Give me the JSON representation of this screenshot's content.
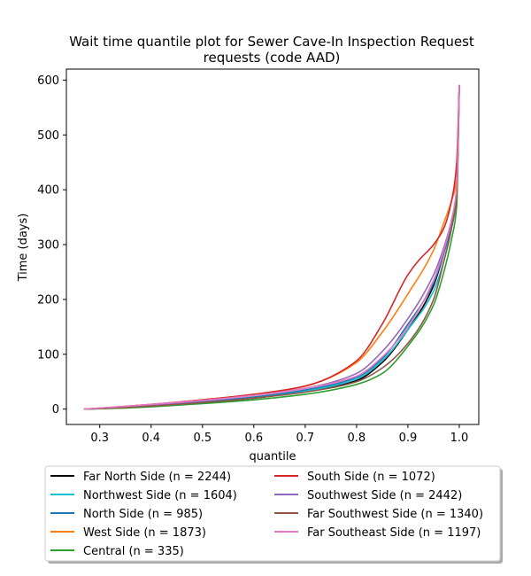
{
  "chart_data": {
    "type": "line",
    "title": "Wait time quantile plot for Sewer Cave-In Inspection Request",
    "subtitle": "requests (code AAD)",
    "xlabel": "quantile",
    "ylabel": "Time (days)",
    "xlim": [
      0.235,
      1.038
    ],
    "ylim": [
      -28,
      620
    ],
    "xticks": [
      0.3,
      0.4,
      0.5,
      0.6,
      0.7,
      0.8,
      0.9,
      1.0
    ],
    "xtick_labels": [
      "0.3",
      "0.4",
      "0.5",
      "0.6",
      "0.7",
      "0.8",
      "0.9",
      "1.0"
    ],
    "yticks": [
      0,
      100,
      200,
      300,
      400,
      500,
      600
    ],
    "ytick_labels": [
      "0",
      "100",
      "200",
      "300",
      "400",
      "500",
      "600"
    ],
    "grid": false,
    "legend_placement": "below",
    "series": [
      {
        "name": "Far North Side (n = 2244)",
        "color": "#000000",
        "x": [
          0.27,
          0.35,
          0.5,
          0.6,
          0.7,
          0.8,
          0.85,
          0.9,
          0.95,
          0.97,
          0.985,
          0.995,
          1.0
        ],
        "y": [
          0,
          3,
          12,
          20,
          32,
          52,
          85,
          145,
          225,
          285,
          340,
          400,
          590
        ]
      },
      {
        "name": "Northwest Side (n = 1604)",
        "color": "#17becf",
        "x": [
          0.27,
          0.35,
          0.5,
          0.6,
          0.7,
          0.8,
          0.85,
          0.9,
          0.95,
          0.97,
          0.985,
          0.995,
          1.0
        ],
        "y": [
          0,
          3,
          12,
          21,
          33,
          55,
          88,
          145,
          215,
          270,
          330,
          390,
          580
        ]
      },
      {
        "name": "North Side (n = 985)",
        "color": "#1f77b4",
        "x": [
          0.27,
          0.35,
          0.5,
          0.6,
          0.7,
          0.8,
          0.85,
          0.9,
          0.95,
          0.97,
          0.985,
          0.995,
          1.0
        ],
        "y": [
          0,
          4,
          13,
          22,
          35,
          58,
          92,
          155,
          230,
          285,
          335,
          395,
          585
        ]
      },
      {
        "name": "West Side (n = 1873)",
        "color": "#ff7f0e",
        "x": [
          0.27,
          0.35,
          0.5,
          0.6,
          0.7,
          0.8,
          0.85,
          0.9,
          0.95,
          0.97,
          0.985,
          0.995,
          1.0
        ],
        "y": [
          0,
          5,
          17,
          27,
          42,
          85,
          140,
          210,
          290,
          340,
          380,
          420,
          590
        ]
      },
      {
        "name": "Central (n = 335)",
        "color": "#2ca02c",
        "x": [
          0.27,
          0.35,
          0.5,
          0.6,
          0.7,
          0.8,
          0.85,
          0.9,
          0.95,
          0.97,
          0.985,
          0.995,
          1.0
        ],
        "y": [
          0,
          2,
          10,
          17,
          27,
          45,
          65,
          115,
          190,
          250,
          310,
          370,
          580
        ]
      },
      {
        "name": "South Side (n = 1072)",
        "color": "#d62728",
        "x": [
          0.27,
          0.35,
          0.5,
          0.6,
          0.7,
          0.8,
          0.85,
          0.9,
          0.92,
          0.95,
          0.97,
          0.985,
          0.995,
          1.0
        ],
        "y": [
          0,
          5,
          17,
          27,
          42,
          88,
          155,
          245,
          270,
          300,
          330,
          380,
          450,
          590
        ]
      },
      {
        "name": "Southwest Side (n = 2442)",
        "color": "#9467bd",
        "x": [
          0.27,
          0.35,
          0.5,
          0.6,
          0.7,
          0.8,
          0.85,
          0.9,
          0.95,
          0.97,
          0.985,
          0.995,
          1.0
        ],
        "y": [
          0,
          4,
          15,
          25,
          38,
          65,
          105,
          165,
          245,
          295,
          345,
          400,
          590
        ]
      },
      {
        "name": "Far Southwest Side (n = 1340)",
        "color": "#8c564b",
        "x": [
          0.27,
          0.35,
          0.5,
          0.6,
          0.7,
          0.8,
          0.85,
          0.9,
          0.95,
          0.97,
          0.985,
          0.995,
          1.0
        ],
        "y": [
          0,
          3,
          12,
          20,
          31,
          50,
          75,
          120,
          200,
          270,
          330,
          390,
          590
        ]
      },
      {
        "name": "Far Southeast Side (n = 1197)",
        "color": "#e377c2",
        "x": [
          0.27,
          0.35,
          0.5,
          0.6,
          0.7,
          0.8,
          0.85,
          0.9,
          0.95,
          0.97,
          0.985,
          0.995,
          1.0
        ],
        "y": [
          0,
          5,
          16,
          25,
          38,
          60,
          95,
          150,
          235,
          290,
          345,
          405,
          590
        ]
      }
    ]
  }
}
